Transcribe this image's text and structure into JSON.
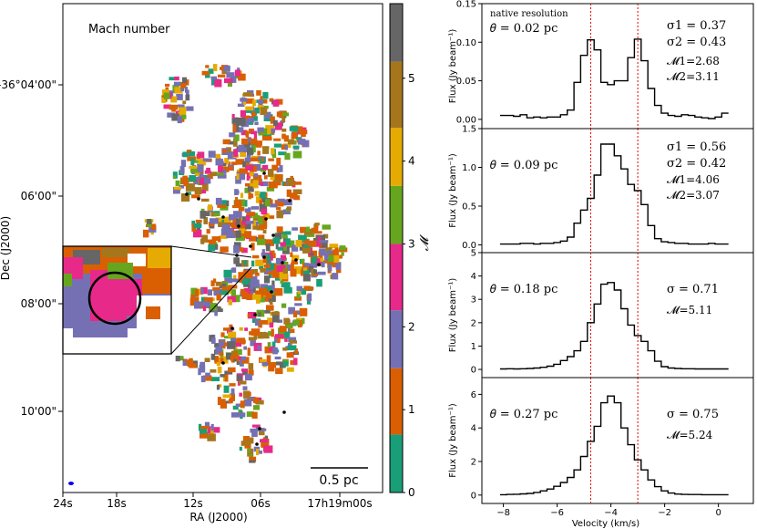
{
  "chart_data": [
    {
      "type": "heatmap",
      "title": "Mach number",
      "xlabel": "RA (J2000)",
      "ylabel": "Dec (J2000)",
      "x_ticks": [
        "24s",
        "18s",
        "12s",
        "06s",
        "17h19m00s"
      ],
      "y_ticks": [
        "-36°04'00\"",
        "06'00\"",
        "08'00\"",
        "10'00\""
      ],
      "colorbar": {
        "label": "𝓜",
        "ticks": [
          "0",
          "1",
          "2",
          "3",
          "4",
          "5"
        ],
        "range": [
          0,
          5.9
        ],
        "bands": [
          {
            "from": 0,
            "to": 0.7,
            "color": "#1a9e77"
          },
          {
            "from": 0.7,
            "to": 1.5,
            "color": "#d95f02"
          },
          {
            "from": 1.5,
            "to": 2.2,
            "color": "#7570b3"
          },
          {
            "from": 2.2,
            "to": 3.0,
            "color": "#e7298a"
          },
          {
            "from": 3.0,
            "to": 3.7,
            "color": "#66a61e"
          },
          {
            "from": 3.7,
            "to": 4.4,
            "color": "#e6ab02"
          },
          {
            "from": 4.4,
            "to": 5.2,
            "color": "#a6761d"
          },
          {
            "from": 5.2,
            "to": 5.9,
            "color": "#666666"
          }
        ]
      },
      "scalebar_label": "0.5 pc"
    },
    {
      "type": "line",
      "xlabel": "Velocity (km/s)",
      "x_ticks": [
        "−8",
        "−6",
        "−4",
        "−2",
        "0"
      ],
      "xlim": [
        -8.8,
        1.3
      ],
      "vlines": [
        -4.75,
        -3.0
      ],
      "panels": [
        {
          "note": "native resolution",
          "theta": "𝜃 = 0.02 pc",
          "sigma": [
            "σ1 = 0.37",
            "σ2 = 0.43"
          ],
          "mach": [
            "𝓜1=2.68",
            "𝓜2=3.11"
          ],
          "ylabel": "Flux (Jy beam⁻¹)",
          "ylim": [
            -0.012,
            0.15
          ],
          "y_ticks": [
            0.0,
            0.05,
            0.1,
            0.15
          ],
          "y_tick_labels": [
            "0.00",
            "0.05",
            "0.10",
            "0.15"
          ],
          "x": [
            -8,
            -7.75,
            -7.5,
            -7.25,
            -7,
            -6.75,
            -6.5,
            -6.25,
            -6,
            -5.75,
            -5.5,
            -5.25,
            -5,
            -4.75,
            -4.5,
            -4.25,
            -4,
            -3.75,
            -3.5,
            -3.25,
            -3,
            -2.75,
            -2.5,
            -2.25,
            -2,
            -1.75,
            -1.5,
            -1.25,
            -1,
            -0.75,
            -0.5,
            -0.25,
            0,
            0.25
          ],
          "y": [
            0.005,
            0.005,
            0.004,
            0.006,
            0.002,
            0.003,
            0.002,
            0.003,
            0.003,
            0.006,
            0.012,
            0.048,
            0.083,
            0.103,
            0.09,
            0.048,
            0.045,
            0.05,
            0.05,
            0.08,
            0.104,
            0.076,
            0.04,
            0.018,
            0.008,
            0.005,
            0.004,
            0.006,
            0.005,
            0.003,
            0.002,
            0.001,
            0.003,
            0.008
          ]
        },
        {
          "theta": "𝜃 = 0.09 pc",
          "sigma": [
            "σ1 = 0.56",
            "σ2 = 0.42"
          ],
          "mach": [
            "𝓜1=4.06",
            "𝓜2=3.07"
          ],
          "ylabel": "Flux (Jy beam⁻¹)",
          "ylim": [
            -0.1,
            1.5
          ],
          "y_ticks": [
            0.0,
            0.5,
            1.0,
            1.5
          ],
          "y_tick_labels": [
            "0.0",
            "0.5",
            "1.0",
            "1.5"
          ],
          "x": [
            -8,
            -7.75,
            -7.5,
            -7.25,
            -7,
            -6.75,
            -6.5,
            -6.25,
            -6,
            -5.75,
            -5.5,
            -5.25,
            -5,
            -4.75,
            -4.5,
            -4.25,
            -4,
            -3.75,
            -3.5,
            -3.25,
            -3,
            -2.75,
            -2.5,
            -2.25,
            -2,
            -1.75,
            -1.5,
            -1.25,
            -1,
            -0.75,
            -0.5,
            -0.25,
            0,
            0.25
          ],
          "y": [
            0.01,
            0.01,
            0.01,
            0.02,
            0.02,
            0.01,
            0.02,
            0.02,
            0.03,
            0.05,
            0.1,
            0.28,
            0.45,
            0.6,
            0.9,
            1.3,
            1.3,
            1.15,
            0.98,
            0.78,
            0.7,
            0.52,
            0.25,
            0.08,
            0.04,
            0.03,
            0.02,
            0.02,
            0.01,
            0.01,
            0.01,
            0.02,
            0.01,
            0.01
          ]
        },
        {
          "theta": "𝜃 = 0.18 pc",
          "sigma": [
            "σ = 0.71"
          ],
          "mach": [
            "𝓜=5.11"
          ],
          "ylabel": "Flux (Jy beam⁻¹)",
          "ylim": [
            -0.35,
            5
          ],
          "y_ticks": [
            0,
            1,
            2,
            3,
            4,
            5
          ],
          "y_tick_labels": [
            "0",
            "1",
            "2",
            "3",
            "4",
            "5"
          ],
          "x": [
            -8,
            -7.75,
            -7.5,
            -7.25,
            -7,
            -6.75,
            -6.5,
            -6.25,
            -6,
            -5.75,
            -5.5,
            -5.25,
            -5,
            -4.75,
            -4.5,
            -4.25,
            -4,
            -3.75,
            -3.5,
            -3.25,
            -3,
            -2.75,
            -2.5,
            -2.25,
            -2,
            -1.75,
            -1.5,
            -1.25,
            -1,
            -0.75,
            -0.5,
            -0.25,
            0,
            0.25
          ],
          "y": [
            0.02,
            0.03,
            0.02,
            0.03,
            0.04,
            0.06,
            0.09,
            0.14,
            0.22,
            0.38,
            0.55,
            0.8,
            1.2,
            2.0,
            2.8,
            3.65,
            3.72,
            3.4,
            2.6,
            1.9,
            1.45,
            1.2,
            0.8,
            0.35,
            0.12,
            0.06,
            0.04,
            0.03,
            0.03,
            0.02,
            0.02,
            0.02,
            0.02,
            0.02
          ]
        },
        {
          "theta": "𝜃 = 0.27 pc",
          "sigma": [
            "σ = 0.75"
          ],
          "mach": [
            "𝓜=5.24"
          ],
          "ylabel": "Flux (Jy beam⁻¹)",
          "ylim": [
            -0.5,
            7
          ],
          "y_ticks": [
            0,
            2,
            4,
            6
          ],
          "y_tick_labels": [
            "0",
            "2",
            "4",
            "6"
          ],
          "x": [
            -8,
            -7.75,
            -7.5,
            -7.25,
            -7,
            -6.75,
            -6.5,
            -6.25,
            -6,
            -5.75,
            -5.5,
            -5.25,
            -5,
            -4.75,
            -4.5,
            -4.25,
            -4,
            -3.75,
            -3.5,
            -3.25,
            -3,
            -2.75,
            -2.5,
            -2.25,
            -2,
            -1.75,
            -1.5,
            -1.25,
            -1,
            -0.75,
            -0.5,
            -0.25,
            0,
            0.25
          ],
          "y": [
            0.02,
            0.04,
            0.05,
            0.07,
            0.1,
            0.16,
            0.25,
            0.36,
            0.52,
            0.75,
            1.05,
            1.5,
            2.3,
            3.2,
            4.1,
            5.5,
            5.9,
            5.5,
            4.0,
            3.0,
            2.1,
            1.5,
            0.9,
            0.5,
            0.25,
            0.12,
            0.06,
            0.04,
            0.03,
            0.03,
            0.02,
            0.02,
            0.02,
            0.02
          ]
        }
      ]
    }
  ]
}
